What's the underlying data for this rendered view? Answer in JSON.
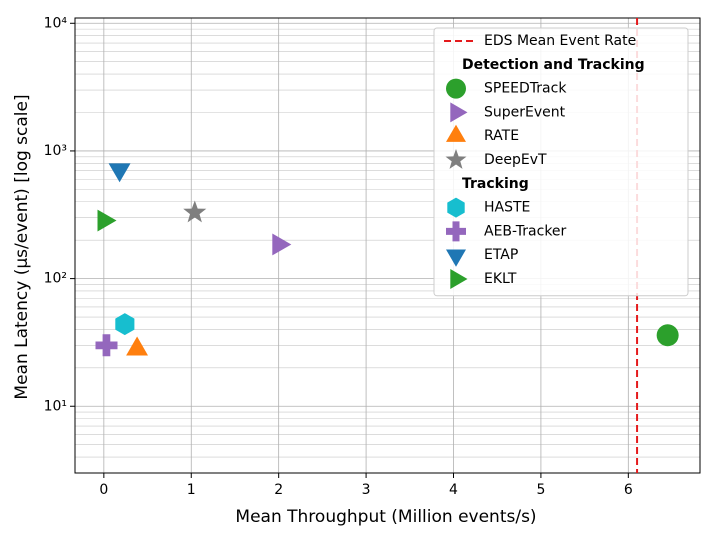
{
  "chart_data": {
    "type": "scatter",
    "x_label": "Mean Throughput (Million events/s)",
    "y_label": "Mean Latency (μs/event) [log scale]",
    "xlim": [
      -0.33,
      6.82
    ],
    "ylim": [
      3,
      11000
    ],
    "y_log_scale": true,
    "grid": true,
    "minor_grid": true,
    "legend_position": "upper right",
    "xticks": [
      0,
      1,
      2,
      3,
      4,
      5,
      6
    ],
    "yticks": [
      {
        "value": 10,
        "label": "10¹"
      },
      {
        "value": 100,
        "label": "10²"
      },
      {
        "value": 1000,
        "label": "10³"
      },
      {
        "value": 10000,
        "label": "10⁴"
      }
    ],
    "vlines": [
      {
        "x": 6.1,
        "name": "EDS Mean Event Rate",
        "color": "#e41a1c",
        "style": "dashed"
      }
    ],
    "series": [
      {
        "name": "SPEEDTrack",
        "group": "Detection and Tracking",
        "marker": "circle",
        "color": "#2ca02c",
        "x": [
          6.45
        ],
        "values": [
          36
        ]
      },
      {
        "name": "SuperEvent",
        "group": "Detection and Tracking",
        "marker": "triangle-right",
        "color": "#9467bd",
        "x": [
          2.0
        ],
        "values": [
          185
        ]
      },
      {
        "name": "RATE",
        "group": "Detection and Tracking",
        "marker": "triangle-up",
        "color": "#ff7f0e",
        "x": [
          0.38
        ],
        "values": [
          28
        ]
      },
      {
        "name": "DeepEvT",
        "group": "Detection and Tracking",
        "marker": "star",
        "color": "#7f7f7f",
        "x": [
          1.04
        ],
        "values": [
          329
        ]
      },
      {
        "name": "HASTE",
        "group": "Tracking",
        "marker": "hexagon",
        "color": "#17becf",
        "x": [
          0.24
        ],
        "values": [
          44
        ]
      },
      {
        "name": "AEB-Tracker",
        "group": "Tracking",
        "marker": "plus",
        "color": "#9467bd",
        "x": [
          0.03
        ],
        "values": [
          30
        ]
      },
      {
        "name": "ETAP",
        "group": "Tracking",
        "marker": "triangle-down",
        "color": "#1f77b4",
        "x": [
          0.18
        ],
        "values": [
          713
        ]
      },
      {
        "name": "EKLT",
        "group": "Tracking",
        "marker": "triangle-right",
        "color": "#2ca02c",
        "x": [
          0.0
        ],
        "values": [
          285
        ]
      }
    ]
  }
}
